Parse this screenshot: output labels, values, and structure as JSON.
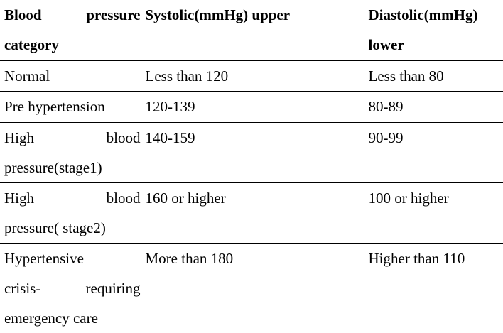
{
  "table": {
    "headers": [
      {
        "lines": [
          "Blood pressure",
          "category"
        ]
      },
      {
        "lines": [
          "Systolic(mmHg) upper"
        ]
      },
      {
        "lines": [
          "Diastolic(mmHg)",
          "lower"
        ]
      }
    ],
    "rows": [
      {
        "category_lines": [
          "Normal"
        ],
        "systolic": "Less than 120",
        "diastolic": "Less than 80"
      },
      {
        "category_lines": [
          "Pre hypertension"
        ],
        "systolic": "120-139",
        "diastolic": "80-89"
      },
      {
        "category_lines": [
          "High blood",
          "pressure(stage1)"
        ],
        "systolic": "140-159",
        "diastolic": "90-99"
      },
      {
        "category_lines": [
          "High blood",
          "pressure( stage2)"
        ],
        "systolic": "160 or higher",
        "diastolic": "100 or higher"
      },
      {
        "category_lines": [
          "Hypertensive",
          "crisis- requiring",
          "emergency care"
        ],
        "systolic": "More than 180",
        "diastolic": "Higher than 110"
      }
    ]
  }
}
